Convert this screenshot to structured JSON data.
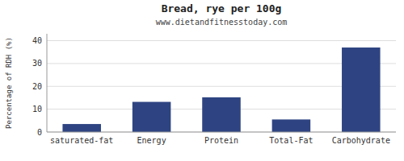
{
  "chart_data": {
    "type": "bar",
    "title": "Bread, rye per 100g",
    "subtitle": "www.dietandfitnesstoday.com",
    "ylabel": "Percentage of RDH (%)",
    "categories": [
      "saturated-fat",
      "Energy",
      "Protein",
      "Total-Fat",
      "Carbohydrate"
    ],
    "values": [
      3.5,
      13.2,
      15.2,
      5.5,
      37.0
    ],
    "color": "#2e4482",
    "ylim": [
      0,
      43
    ],
    "yticks": [
      0,
      10,
      20,
      30,
      40
    ],
    "grid": true
  }
}
